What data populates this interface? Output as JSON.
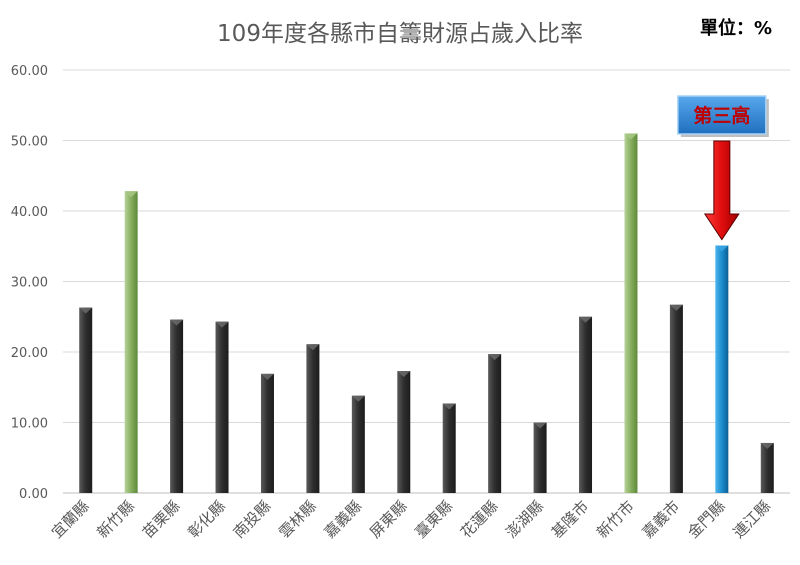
{
  "chart_data": {
    "type": "bar",
    "title": "109年度各縣市自籌財源占歲入比率",
    "unit_label": "單位：%",
    "categories": [
      "宜蘭縣",
      "新竹縣",
      "苗栗縣",
      "彰化縣",
      "南投縣",
      "雲林縣",
      "嘉義縣",
      "屏東縣",
      "臺東縣",
      "花蓮縣",
      "澎湖縣",
      "基隆市",
      "新竹市",
      "嘉義市",
      "金門縣",
      "連江縣"
    ],
    "values": [
      26.3,
      42.8,
      24.6,
      24.3,
      16.9,
      21.1,
      13.8,
      17.3,
      12.7,
      19.7,
      10.0,
      25.0,
      51.0,
      26.7,
      35.1,
      7.1
    ],
    "highlight": [
      "",
      "green",
      "",
      "",
      "",
      "",
      "",
      "",
      "",
      "",
      "",
      "",
      "green",
      "",
      "blue",
      ""
    ],
    "ylim": [
      0,
      60
    ],
    "yticks": [
      "0.00",
      "10.00",
      "20.00",
      "30.00",
      "40.00",
      "50.00",
      "60.00"
    ],
    "grid": true,
    "annotation": {
      "text": "第三高",
      "target": "金門縣"
    },
    "colors": {
      "default": "#404040",
      "green": "#8fb46a",
      "blue": "#1c8ccc",
      "arrow": "#e01010",
      "callout_text": "#c00000",
      "callout_fill": "#2f82d0"
    }
  }
}
